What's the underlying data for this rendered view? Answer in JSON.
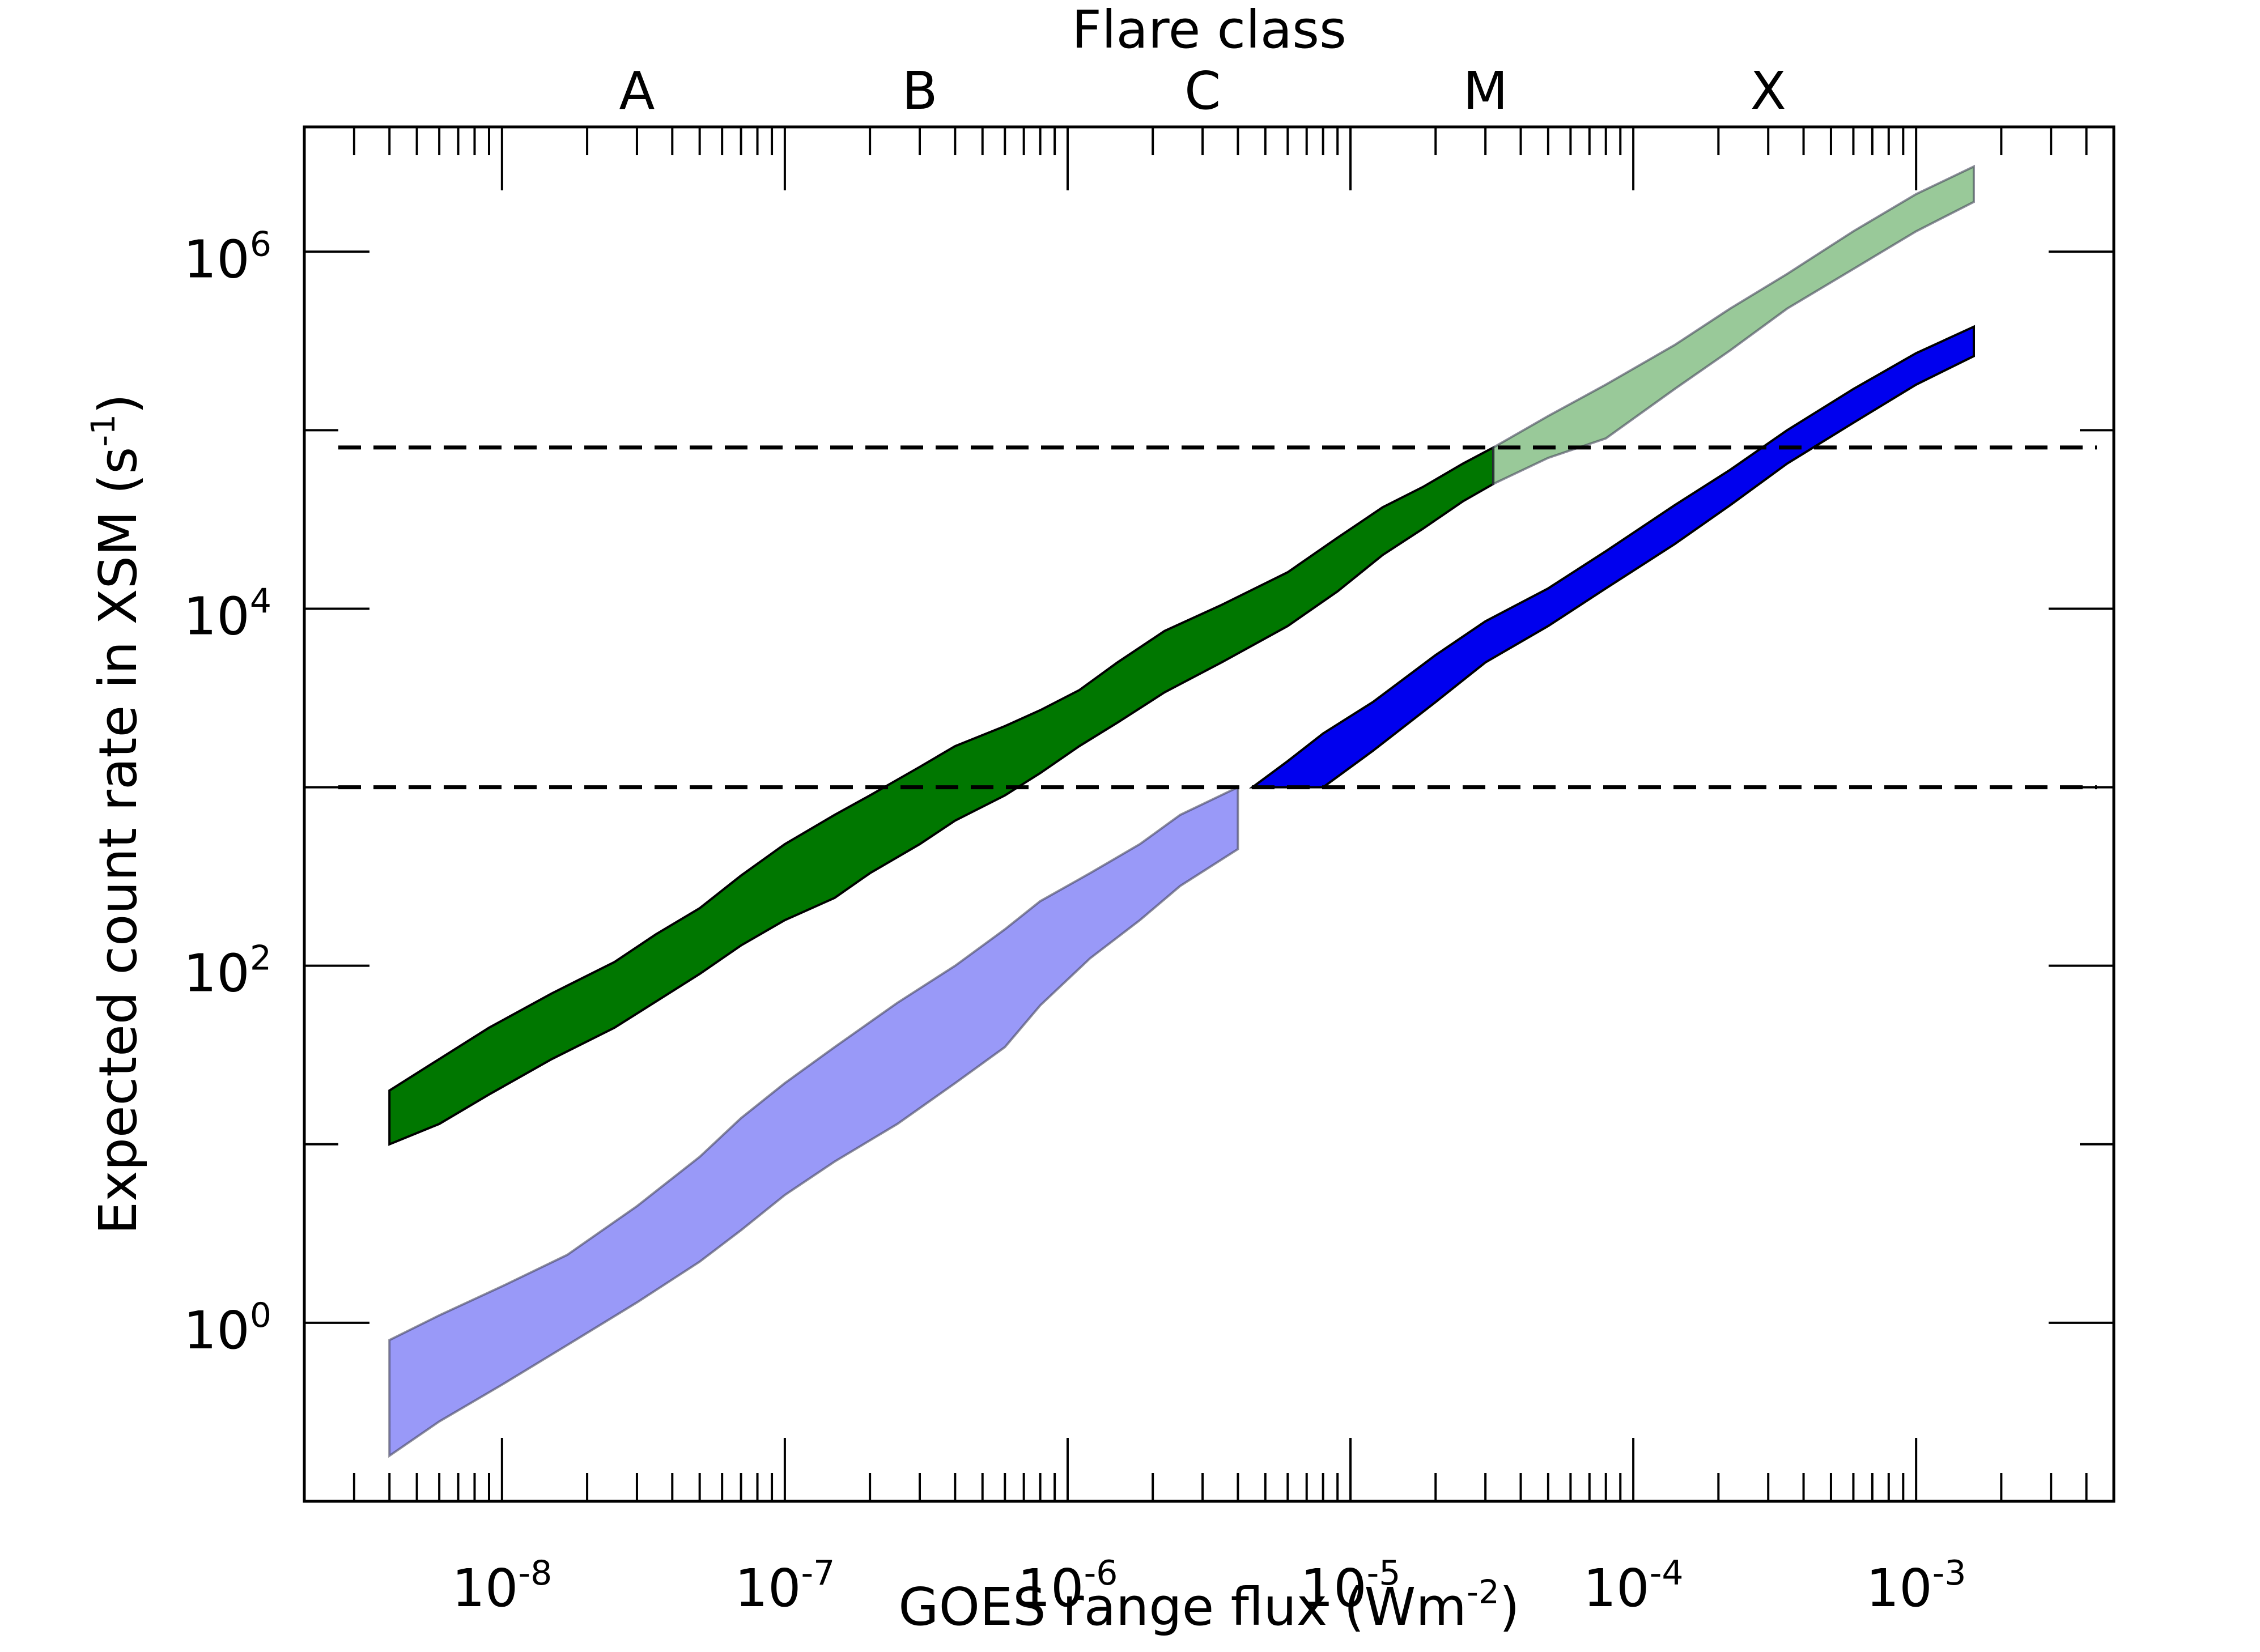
{
  "chart_data": {
    "type": "area",
    "x_scale": "log",
    "y_scale": "log",
    "xlim": [
      2e-09,
      0.005
    ],
    "ylim": [
      0.1,
      5000000.0
    ],
    "xlabel": "GOES range flux (Wm",
    "xlabel_sup": "-2",
    "xlabel_suffix": ")",
    "ylabel": "Expected count rate in XSM (s",
    "ylabel_sup": "-1",
    "ylabel_suffix": ")",
    "top_axis_title": "Flare class",
    "x_tick_labels": [
      {
        "base": "10",
        "exp": "-8",
        "value": 1e-08
      },
      {
        "base": "10",
        "exp": "-7",
        "value": 1e-07
      },
      {
        "base": "10",
        "exp": "-6",
        "value": 1e-06
      },
      {
        "base": "10",
        "exp": "-5",
        "value": 1e-05
      },
      {
        "base": "10",
        "exp": "-4",
        "value": 0.0001
      },
      {
        "base": "10",
        "exp": "-3",
        "value": 0.001
      }
    ],
    "y_tick_labels": [
      {
        "base": "10",
        "exp": "0",
        "value": 1
      },
      {
        "base": "10",
        "exp": "2",
        "value": 100
      },
      {
        "base": "10",
        "exp": "4",
        "value": 10000
      },
      {
        "base": "10",
        "exp": "6",
        "value": 1000000
      }
    ],
    "flare_classes": [
      {
        "label": "A",
        "value": 3e-08
      },
      {
        "label": "B",
        "value": 3e-07
      },
      {
        "label": "C",
        "value": 3e-06
      },
      {
        "label": "M",
        "value": 3e-05
      },
      {
        "label": "X",
        "value": 0.0003
      }
    ],
    "hlines": [
      1000,
      80000
    ],
    "series": [
      {
        "color": "#007700",
        "x": [
          4e-09,
          6e-09,
          9e-09,
          1.5e-08,
          2.5e-08,
          3.5e-08,
          5e-08,
          7e-08,
          1e-07,
          1.5e-07,
          2e-07,
          3e-07,
          4e-07,
          6e-07,
          8e-07,
          1.1e-06,
          1.5e-06,
          2.2e-06,
          3.5e-06,
          6e-06,
          9e-06,
          1.3e-05,
          1.8e-05,
          2.5e-05,
          3.2e-05
        ],
        "upper": [
          20,
          30,
          45,
          70,
          105,
          150,
          210,
          320,
          480,
          700,
          900,
          1300,
          1700,
          2200,
          2700,
          3500,
          5000,
          7500,
          10500,
          16000,
          25000,
          37000,
          48000,
          65000,
          80000
        ],
        "lower": [
          10,
          13,
          19,
          30,
          45,
          63,
          90,
          130,
          180,
          240,
          330,
          480,
          650,
          900,
          1200,
          1700,
          2300,
          3400,
          5000,
          8000,
          12500,
          20000,
          28000,
          40000,
          50000
        ]
      },
      {
        "color": "#007700",
        "opacity": 0.4,
        "x": [
          3.2e-05,
          5e-05,
          8e-05,
          0.00014,
          0.00022,
          0.00035,
          0.0006,
          0.001,
          0.0016
        ],
        "upper": [
          80000,
          120000,
          180000,
          300000,
          480000,
          750000,
          1300000,
          2100000,
          3000000
        ],
        "lower": [
          50000,
          70000,
          90000,
          170000,
          280000,
          480000,
          800000,
          1300000,
          1900000
        ]
      },
      {
        "color": "#0000ee",
        "opacity": 0.4,
        "x": [
          4e-09,
          6e-09,
          1e-08,
          1.7e-08,
          3e-08,
          5e-08,
          7e-08,
          1e-07,
          1.5e-07,
          2.5e-07,
          4e-07,
          6e-07,
          8e-07,
          1.2e-06,
          1.8e-06,
          2.5e-06,
          4e-06
        ],
        "upper": [
          0.8,
          1.1,
          1.6,
          2.4,
          4.5,
          8.5,
          14,
          22,
          35,
          62,
          100,
          160,
          230,
          330,
          480,
          700,
          1000
        ],
        "lower": [
          0.18,
          0.28,
          0.45,
          0.75,
          1.3,
          2.2,
          3.3,
          5.2,
          8,
          13,
          22,
          35,
          60,
          110,
          180,
          280,
          450
        ]
      },
      {
        "color": "#0000ee",
        "x": [
          4.5e-06,
          6e-06,
          8e-06,
          1.2e-05,
          2e-05,
          3e-05,
          5e-05,
          8e-05,
          0.00014,
          0.00022,
          0.00035,
          0.0006,
          0.001,
          0.0016
        ],
        "upper": [
          1000,
          1400,
          2000,
          3000,
          5500,
          8500,
          13000,
          21000,
          38000,
          60000,
          100000,
          170000,
          270000,
          380000
        ],
        "lower": [
          1000,
          1000,
          1000,
          1600,
          3000,
          5000,
          8000,
          13000,
          23000,
          38000,
          65000,
          110000,
          180000,
          260000
        ]
      }
    ]
  }
}
